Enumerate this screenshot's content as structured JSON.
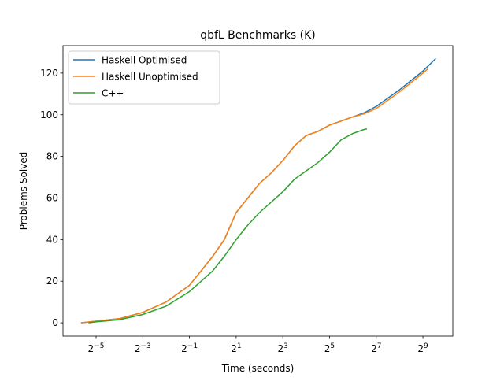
{
  "chart_data": {
    "type": "line",
    "title": "qbfL Benchmarks (K)",
    "x_label": "Time (seconds)",
    "y_label": "Problems Solved",
    "x_scale": "log2",
    "legend": "upper left",
    "xlim": [
      0.0117,
      1243
    ],
    "ylim": [
      -6.4,
      133.2
    ],
    "xticks": [
      {
        "value": 0.03125,
        "label": "2−5"
      },
      {
        "value": 0.125,
        "label": "2−3"
      },
      {
        "value": 0.5,
        "label": "2−1"
      },
      {
        "value": 2,
        "label": "21"
      },
      {
        "value": 8,
        "label": "23"
      },
      {
        "value": 32,
        "label": "25"
      },
      {
        "value": 128,
        "label": "27"
      },
      {
        "value": 512,
        "label": "29"
      }
    ],
    "yticks": [
      0,
      20,
      40,
      60,
      80,
      100,
      120
    ],
    "series": [
      {
        "name": "Haskell Optimised",
        "color": "#1f77b4",
        "x": [
          0.02,
          0.03125,
          0.0625,
          0.125,
          0.25,
          0.5,
          1,
          1.41,
          2,
          2.83,
          4,
          5.66,
          8,
          11.3,
          16,
          22.6,
          32,
          45.3,
          64,
          90.5,
          128,
          256,
          512,
          750
        ],
        "values": [
          0,
          0.8,
          2,
          5,
          10,
          18,
          32,
          40,
          53,
          60,
          67,
          72,
          78,
          85,
          90,
          92,
          95,
          97,
          99,
          101,
          104,
          112,
          121,
          127
        ]
      },
      {
        "name": "Haskell Unoptimised",
        "color": "#ff7f0e",
        "x": [
          0.02,
          0.03125,
          0.0625,
          0.125,
          0.25,
          0.5,
          1,
          1.41,
          2,
          2.83,
          4,
          5.66,
          8,
          11.3,
          16,
          22.6,
          32,
          45.3,
          64,
          90.5,
          128,
          256,
          512,
          590
        ],
        "values": [
          0,
          0.8,
          2,
          5,
          10,
          18,
          32,
          40,
          53,
          60,
          67,
          72,
          78,
          85,
          90,
          92,
          95,
          97,
          99,
          100.5,
          103,
          111,
          120,
          122
        ]
      },
      {
        "name": "C++",
        "color": "#2ca02c",
        "x": [
          0.025,
          0.03125,
          0.0625,
          0.125,
          0.25,
          0.5,
          1,
          1.41,
          2,
          2.83,
          4,
          5.66,
          8,
          11.3,
          16,
          22.6,
          32,
          45.3,
          64,
          90.5,
          97
        ],
        "values": [
          0,
          0.5,
          1.5,
          4,
          8,
          15,
          25,
          32,
          40,
          47,
          53,
          58,
          63,
          69,
          73,
          77,
          82,
          88,
          91,
          93,
          93.2
        ]
      }
    ]
  }
}
